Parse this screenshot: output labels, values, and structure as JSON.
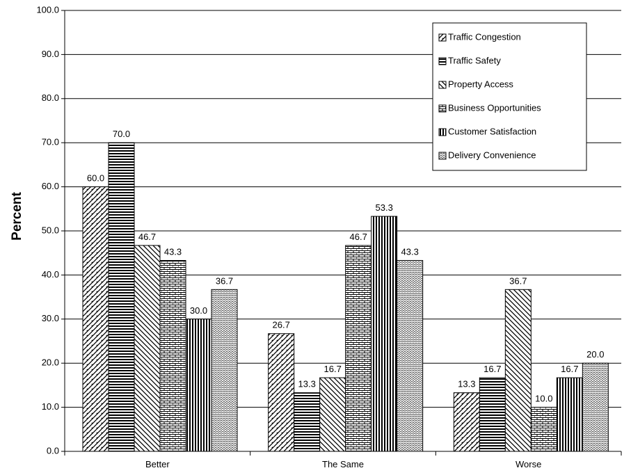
{
  "chart_data": {
    "type": "bar",
    "categories": [
      "Better",
      "The Same",
      "Worse"
    ],
    "series": [
      {
        "name": "Traffic Congestion",
        "values": [
          60.0,
          26.7,
          13.3
        ],
        "pattern": "diag-fwd"
      },
      {
        "name": "Traffic Safety",
        "values": [
          70.0,
          13.3,
          16.7
        ],
        "pattern": "horiz"
      },
      {
        "name": "Property Access",
        "values": [
          46.7,
          16.7,
          36.7
        ],
        "pattern": "diag-back"
      },
      {
        "name": "Business Opportunities",
        "values": [
          43.3,
          46.7,
          10.0
        ],
        "pattern": "brick"
      },
      {
        "name": "Customer Satisfaction",
        "values": [
          30.0,
          53.3,
          16.7
        ],
        "pattern": "vert"
      },
      {
        "name": "Delivery Convenience",
        "values": [
          36.7,
          43.3,
          20.0
        ],
        "pattern": "wave"
      }
    ],
    "data_labels": [
      [
        "60.0",
        "26.7",
        "13.3"
      ],
      [
        "70.0",
        "13.3",
        "16.7"
      ],
      [
        "46.7",
        "16.7",
        "36.7"
      ],
      [
        "43.3",
        "46.7",
        "10.0"
      ],
      [
        "30.0",
        "53.3",
        "16.7"
      ],
      [
        "36.7",
        "43.3",
        "20.0"
      ]
    ],
    "title": "",
    "xlabel": "",
    "ylabel": "Percent",
    "ylim": [
      0,
      100
    ],
    "yticks": [
      "0.0",
      "10.0",
      "20.0",
      "30.0",
      "40.0",
      "50.0",
      "60.0",
      "70.0",
      "80.0",
      "90.0",
      "100.0"
    ],
    "grid": true,
    "legend_position": "top-right"
  }
}
